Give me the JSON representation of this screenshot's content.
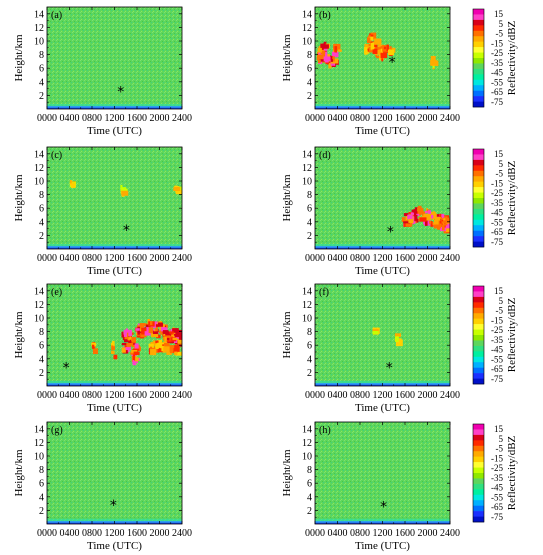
{
  "chart_data": {
    "type": "heatmap",
    "xlabel": "Time (UTC)",
    "ylabel": "Height/km",
    "colorbar_label": "Reflectivity/dBZ",
    "x_ticks": [
      "0000",
      "0400",
      "0800",
      "1200",
      "1600",
      "2000",
      "2400"
    ],
    "y_ticks": [
      "2",
      "4",
      "6",
      "8",
      "10",
      "12",
      "14"
    ],
    "ylim": [
      0,
      15
    ],
    "xlim_hours": [
      0,
      24
    ],
    "colorbar_ticks": [
      "15",
      "5",
      "-5",
      "-15",
      "-25",
      "-35",
      "-45",
      "-55",
      "-65",
      "-75"
    ],
    "colorbar_colors": [
      "#f000b0",
      "#ff40c8",
      "#d80018",
      "#ff2a00",
      "#ff7000",
      "#ffaa00",
      "#ffd000",
      "#ffff30",
      "#c8ff00",
      "#8fe800",
      "#5dd65d",
      "#30e080",
      "#00f0a0",
      "#00e8e0",
      "#00b0ff",
      "#0070ff",
      "#1a30ff",
      "#0010c8"
    ],
    "background_color": "#5dd65d",
    "panels": [
      {
        "id": "a",
        "label": "(a)",
        "colorbar": false,
        "marker": {
          "time": 13.1,
          "height": 2.6
        },
        "echoes": []
      },
      {
        "id": "b",
        "label": "(b)",
        "colorbar": true,
        "marker": {
          "time": 13.7,
          "height": 6.9
        },
        "echoes": [
          {
            "t0": 0.3,
            "t1": 3.1,
            "h0": 6.8,
            "h1": 9.6,
            "level": "strong"
          },
          {
            "t0": 3.1,
            "t1": 4.1,
            "h0": 8.2,
            "h1": 9.4,
            "level": "moderate"
          },
          {
            "t0": 8.7,
            "t1": 11.8,
            "h0": 8.2,
            "h1": 10.8,
            "level": "moderate"
          },
          {
            "t0": 11.8,
            "t1": 13.6,
            "h0": 8.3,
            "h1": 9.4,
            "level": "moderate"
          },
          {
            "t0": 20.4,
            "t1": 20.9,
            "h0": 6.6,
            "h1": 7.6,
            "level": "weak"
          }
        ]
      },
      {
        "id": "c",
        "label": "(c)",
        "colorbar": false,
        "marker": {
          "time": 14.1,
          "height": 2.8
        },
        "echoes": [
          {
            "t0": 4.0,
            "t1": 4.3,
            "h0": 9.3,
            "h1": 10.1,
            "level": "weak"
          },
          {
            "t0": 13.0,
            "t1": 13.3,
            "h0": 8.2,
            "h1": 9.0,
            "level": "weak"
          },
          {
            "t0": 22.3,
            "t1": 24.0,
            "h0": 8.3,
            "h1": 9.0,
            "level": "weak"
          }
        ]
      },
      {
        "id": "d",
        "label": "(d)",
        "colorbar": true,
        "marker": {
          "time": 13.4,
          "height": 2.6
        },
        "echoes": [
          {
            "t0": 15.4,
            "t1": 24.0,
            "h0": 3.6,
            "h1": 5.8,
            "level": "strong"
          }
        ]
      },
      {
        "id": "e",
        "label": "(e)",
        "colorbar": false,
        "marker": {
          "time": 3.4,
          "height": 2.7
        },
        "echoes": [
          {
            "t0": 7.7,
            "t1": 8.2,
            "h0": 5.0,
            "h1": 7.0,
            "level": "moderate"
          },
          {
            "t0": 11.3,
            "t1": 11.9,
            "h0": 4.5,
            "h1": 6.2,
            "level": "moderate"
          },
          {
            "t0": 13.2,
            "t1": 15.6,
            "h0": 4.6,
            "h1": 8.2,
            "level": "strong"
          },
          {
            "t0": 15.6,
            "t1": 23.9,
            "h0": 7.0,
            "h1": 9.2,
            "level": "strong"
          },
          {
            "t0": 18.0,
            "t1": 23.5,
            "h0": 5.0,
            "h1": 6.4,
            "level": "moderate"
          }
        ]
      },
      {
        "id": "f",
        "label": "(f)",
        "colorbar": true,
        "marker": {
          "time": 13.2,
          "height": 2.7
        },
        "echoes": [
          {
            "t0": 14.1,
            "t1": 14.4,
            "h0": 6.5,
            "h1": 7.4,
            "level": "weak"
          },
          {
            "t0": 10.2,
            "t1": 10.4,
            "h0": 7.8,
            "h1": 8.2,
            "level": "weak"
          }
        ]
      },
      {
        "id": "g",
        "label": "(g)",
        "colorbar": false,
        "marker": {
          "time": 11.8,
          "height": 2.8
        },
        "echoes": []
      },
      {
        "id": "h",
        "label": "(h)",
        "colorbar": true,
        "marker": {
          "time": 12.2,
          "height": 2.6
        },
        "echoes": []
      }
    ]
  }
}
